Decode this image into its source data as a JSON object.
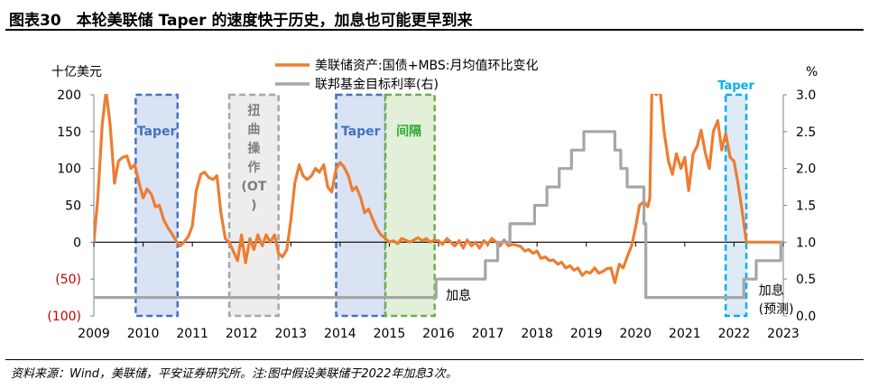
{
  "figure_title": "图表30　本轮美联储 Taper 的速度快于历史，加息也可能更早到来",
  "source_note": "资料来源：Wind，美联储，平安证券研究所。注:图中假设美联储于2022年加息3次。",
  "colors": {
    "series_orange": "#ED7D31",
    "series_gray": "#A6A6A6",
    "negative_tick": "#C00000",
    "taper_blue": "#4472C4",
    "taper_fill": "#DAE3F3",
    "ot_gray": "#A6A6A6",
    "ot_fill": "#EDEDED",
    "green": "#70AD47",
    "green_fill": "#E2F0D9",
    "cyan": "#00B0F0",
    "cyan_fill": "#DEEBF7"
  },
  "chart_data": {
    "type": "line",
    "left_axis_unit": "十亿美元",
    "right_axis_unit": "%",
    "xlim": [
      2009.0,
      2023.0
    ],
    "ylim_left": [
      -100,
      200
    ],
    "ylim_right": [
      0.0,
      3.0
    ],
    "x_ticks": [
      "2009",
      "2010",
      "2011",
      "2012",
      "2013",
      "2014",
      "2015",
      "2016",
      "2017",
      "2018",
      "2019",
      "2020",
      "2021",
      "2022",
      "2023"
    ],
    "y_left_ticks": [
      "200",
      "150",
      "100",
      "50",
      "0",
      "(50)",
      "(100)"
    ],
    "y_right_ticks": [
      "3.0",
      "2.5",
      "2.0",
      "1.5",
      "1.0",
      "0.5",
      "0.0"
    ],
    "series": [
      {
        "name": "美联储资产:国债+MBS:月均值环比变化",
        "axis": "left",
        "points": [
          [
            2009.0,
            0
          ],
          [
            2009.08,
            60
          ],
          [
            2009.17,
            160
          ],
          [
            2009.25,
            205
          ],
          [
            2009.33,
            160
          ],
          [
            2009.42,
            80
          ],
          [
            2009.5,
            110
          ],
          [
            2009.58,
            115
          ],
          [
            2009.67,
            117
          ],
          [
            2009.75,
            100
          ],
          [
            2009.83,
            105
          ],
          [
            2009.92,
            80
          ],
          [
            2010.0,
            60
          ],
          [
            2010.08,
            72
          ],
          [
            2010.17,
            65
          ],
          [
            2010.25,
            48
          ],
          [
            2010.33,
            50
          ],
          [
            2010.42,
            30
          ],
          [
            2010.5,
            20
          ],
          [
            2010.58,
            12
          ],
          [
            2010.67,
            2
          ],
          [
            2010.75,
            -5
          ],
          [
            2010.83,
            0
          ],
          [
            2010.92,
            8
          ],
          [
            2011.0,
            22
          ],
          [
            2011.08,
            70
          ],
          [
            2011.17,
            92
          ],
          [
            2011.25,
            95
          ],
          [
            2011.33,
            88
          ],
          [
            2011.42,
            85
          ],
          [
            2011.5,
            90
          ],
          [
            2011.58,
            40
          ],
          [
            2011.67,
            5
          ],
          [
            2011.75,
            0
          ],
          [
            2011.83,
            -12
          ],
          [
            2011.92,
            -25
          ],
          [
            2012.0,
            10
          ],
          [
            2012.08,
            -28
          ],
          [
            2012.17,
            5
          ],
          [
            2012.25,
            -10
          ],
          [
            2012.33,
            10
          ],
          [
            2012.42,
            -5
          ],
          [
            2012.5,
            10
          ],
          [
            2012.58,
            0
          ],
          [
            2012.67,
            10
          ],
          [
            2012.75,
            -15
          ],
          [
            2012.83,
            -20
          ],
          [
            2012.92,
            -10
          ],
          [
            2013.0,
            30
          ],
          [
            2013.08,
            80
          ],
          [
            2013.17,
            105
          ],
          [
            2013.25,
            90
          ],
          [
            2013.33,
            85
          ],
          [
            2013.42,
            90
          ],
          [
            2013.5,
            100
          ],
          [
            2013.58,
            95
          ],
          [
            2013.67,
            105
          ],
          [
            2013.75,
            75
          ],
          [
            2013.83,
            68
          ],
          [
            2013.92,
            100
          ],
          [
            2014.0,
            108
          ],
          [
            2014.08,
            102
          ],
          [
            2014.17,
            90
          ],
          [
            2014.25,
            70
          ],
          [
            2014.33,
            75
          ],
          [
            2014.42,
            60
          ],
          [
            2014.5,
            40
          ],
          [
            2014.58,
            45
          ],
          [
            2014.67,
            30
          ],
          [
            2014.75,
            18
          ],
          [
            2014.83,
            10
          ],
          [
            2014.92,
            5
          ],
          [
            2015.0,
            0
          ],
          [
            2015.08,
            2
          ],
          [
            2015.17,
            -2
          ],
          [
            2015.25,
            5
          ],
          [
            2015.33,
            3
          ],
          [
            2015.42,
            0
          ],
          [
            2015.5,
            3
          ],
          [
            2015.58,
            6
          ],
          [
            2015.67,
            2
          ],
          [
            2015.75,
            5
          ],
          [
            2015.83,
            0
          ],
          [
            2015.92,
            3
          ],
          [
            2016.0,
            2
          ],
          [
            2016.08,
            -3
          ],
          [
            2016.17,
            5
          ],
          [
            2016.25,
            0
          ],
          [
            2016.33,
            -5
          ],
          [
            2016.42,
            2
          ],
          [
            2016.5,
            -8
          ],
          [
            2016.58,
            3
          ],
          [
            2016.67,
            -5
          ],
          [
            2016.75,
            0
          ],
          [
            2016.83,
            -8
          ],
          [
            2016.92,
            2
          ],
          [
            2017.0,
            -3
          ],
          [
            2017.08,
            5
          ],
          [
            2017.17,
            0
          ],
          [
            2017.25,
            -5
          ],
          [
            2017.33,
            3
          ],
          [
            2017.42,
            -5
          ],
          [
            2017.5,
            -3
          ],
          [
            2017.58,
            -4
          ],
          [
            2017.67,
            -6
          ],
          [
            2017.75,
            -12
          ],
          [
            2017.83,
            -10
          ],
          [
            2017.92,
            -15
          ],
          [
            2018.0,
            -12
          ],
          [
            2018.08,
            -22
          ],
          [
            2018.17,
            -20
          ],
          [
            2018.25,
            -25
          ],
          [
            2018.33,
            -24
          ],
          [
            2018.42,
            -30
          ],
          [
            2018.5,
            -27
          ],
          [
            2018.58,
            -35
          ],
          [
            2018.67,
            -32
          ],
          [
            2018.75,
            -38
          ],
          [
            2018.83,
            -35
          ],
          [
            2018.92,
            -45
          ],
          [
            2019.0,
            -40
          ],
          [
            2019.08,
            -42
          ],
          [
            2019.17,
            -35
          ],
          [
            2019.25,
            -42
          ],
          [
            2019.33,
            -40
          ],
          [
            2019.42,
            -36
          ],
          [
            2019.5,
            -35
          ],
          [
            2019.58,
            -55
          ],
          [
            2019.67,
            -30
          ],
          [
            2019.75,
            -35
          ],
          [
            2019.83,
            -20
          ],
          [
            2019.92,
            -5
          ],
          [
            2020.0,
            20
          ],
          [
            2020.08,
            50
          ],
          [
            2020.17,
            55
          ],
          [
            2020.25,
            48
          ],
          [
            2020.29,
            60
          ],
          [
            2020.33,
            200
          ],
          [
            2020.37,
            205
          ],
          [
            2020.42,
            200
          ],
          [
            2020.5,
            205
          ],
          [
            2020.58,
            150
          ],
          [
            2020.67,
            110
          ],
          [
            2020.75,
            92
          ],
          [
            2020.83,
            120
          ],
          [
            2020.92,
            100
          ],
          [
            2021.0,
            115
          ],
          [
            2021.08,
            70
          ],
          [
            2021.17,
            120
          ],
          [
            2021.25,
            130
          ],
          [
            2021.33,
            152
          ],
          [
            2021.42,
            120
          ],
          [
            2021.5,
            100
          ],
          [
            2021.58,
            150
          ],
          [
            2021.67,
            165
          ],
          [
            2021.75,
            125
          ],
          [
            2021.83,
            148
          ],
          [
            2021.92,
            115
          ],
          [
            2022.0,
            110
          ],
          [
            2022.08,
            80
          ],
          [
            2022.17,
            40
          ],
          [
            2022.25,
            0
          ],
          [
            2022.33,
            0
          ],
          [
            2022.5,
            0
          ],
          [
            2022.67,
            0
          ],
          [
            2022.83,
            0
          ],
          [
            2023.0,
            0
          ]
        ]
      },
      {
        "name": "联邦基金目标利率(右)",
        "axis": "right",
        "points": [
          [
            2009.0,
            0.25
          ],
          [
            2015.95,
            0.25
          ],
          [
            2015.95,
            0.5
          ],
          [
            2016.95,
            0.5
          ],
          [
            2016.95,
            0.75
          ],
          [
            2017.2,
            0.75
          ],
          [
            2017.2,
            1.0
          ],
          [
            2017.45,
            1.0
          ],
          [
            2017.45,
            1.25
          ],
          [
            2017.95,
            1.25
          ],
          [
            2017.95,
            1.5
          ],
          [
            2018.2,
            1.5
          ],
          [
            2018.2,
            1.75
          ],
          [
            2018.45,
            1.75
          ],
          [
            2018.45,
            2.0
          ],
          [
            2018.7,
            2.0
          ],
          [
            2018.7,
            2.25
          ],
          [
            2018.95,
            2.25
          ],
          [
            2018.95,
            2.5
          ],
          [
            2019.58,
            2.5
          ],
          [
            2019.58,
            2.25
          ],
          [
            2019.7,
            2.25
          ],
          [
            2019.7,
            2.0
          ],
          [
            2019.83,
            2.0
          ],
          [
            2019.83,
            1.75
          ],
          [
            2020.17,
            1.75
          ],
          [
            2020.17,
            1.25
          ],
          [
            2020.21,
            1.25
          ],
          [
            2020.21,
            0.25
          ],
          [
            2022.2,
            0.25
          ],
          [
            2022.2,
            0.5
          ],
          [
            2022.45,
            0.5
          ],
          [
            2022.45,
            0.75
          ],
          [
            2022.95,
            0.75
          ],
          [
            2022.95,
            1.0
          ],
          [
            2023.0,
            1.0
          ]
        ]
      }
    ],
    "shaded_periods": [
      {
        "label": "Taper",
        "kind": "taper",
        "x": [
          2009.85,
          2010.7
        ],
        "y": [
          -100,
          200
        ]
      },
      {
        "label": "扭曲操作(OT)",
        "kind": "ot",
        "x": [
          2011.75,
          2012.75
        ],
        "y": [
          -100,
          200
        ]
      },
      {
        "label": "Taper",
        "kind": "taper",
        "x": [
          2013.92,
          2014.92
        ],
        "y": [
          -100,
          200
        ]
      },
      {
        "label": "间隔",
        "kind": "gap",
        "x": [
          2014.92,
          2015.92
        ],
        "y": [
          -100,
          200
        ]
      },
      {
        "label": "Taper",
        "kind": "taper2021",
        "x": [
          2021.83,
          2022.25
        ],
        "y": [
          -100,
          200
        ]
      }
    ],
    "annotations": [
      {
        "text": "加息",
        "x": 2016.15,
        "y_right": 0.28
      },
      {
        "text": "加息",
        "x": 2022.5,
        "y_right": 0.35
      },
      {
        "text": "(预测)",
        "x": 2022.5,
        "y_right": 0.1
      }
    ]
  }
}
